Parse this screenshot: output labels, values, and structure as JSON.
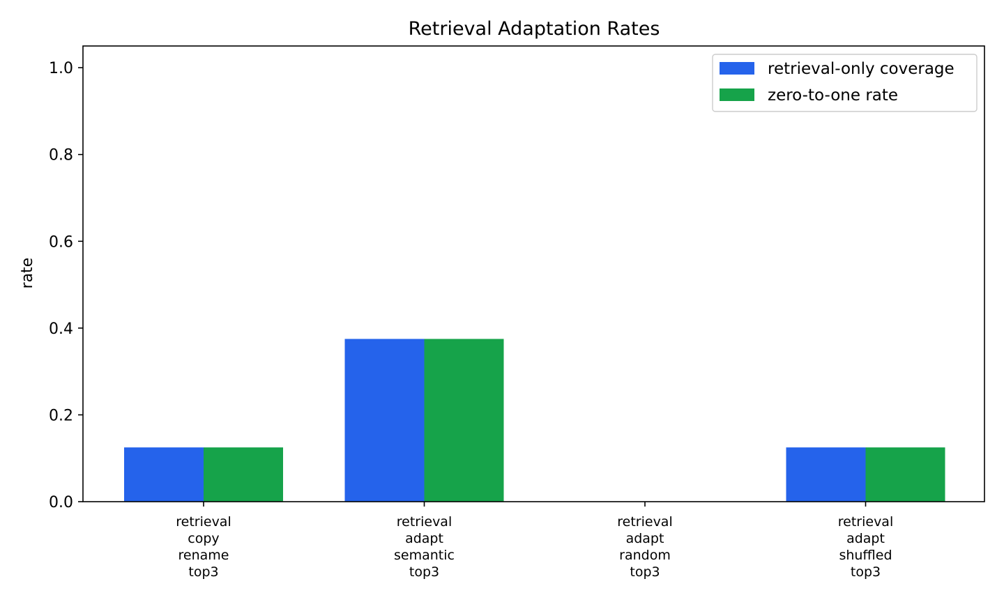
{
  "chart_data": {
    "type": "bar",
    "title": "Retrieval Adaptation Rates",
    "xlabel": "",
    "ylabel": "rate",
    "ylim": [
      0,
      1.05
    ],
    "yticks": [
      0.0,
      0.2,
      0.4,
      0.6,
      0.8,
      1.0
    ],
    "ytick_labels": [
      "0.0",
      "0.2",
      "0.4",
      "0.6",
      "0.8",
      "1.0"
    ],
    "grid": false,
    "legend_position": "top-right",
    "categories": [
      [
        "retrieval",
        "copy",
        "rename",
        "top3"
      ],
      [
        "retrieval",
        "adapt",
        "semantic",
        "top3"
      ],
      [
        "retrieval",
        "adapt",
        "random",
        "top3"
      ],
      [
        "retrieval",
        "adapt",
        "shuffled",
        "top3"
      ]
    ],
    "series": [
      {
        "name": "retrieval-only coverage",
        "color": "#2563eb",
        "values": [
          0.125,
          0.375,
          0.0,
          0.125
        ]
      },
      {
        "name": "zero-to-one rate",
        "color": "#16a34a",
        "values": [
          0.125,
          0.375,
          0.0,
          0.125
        ]
      }
    ]
  }
}
